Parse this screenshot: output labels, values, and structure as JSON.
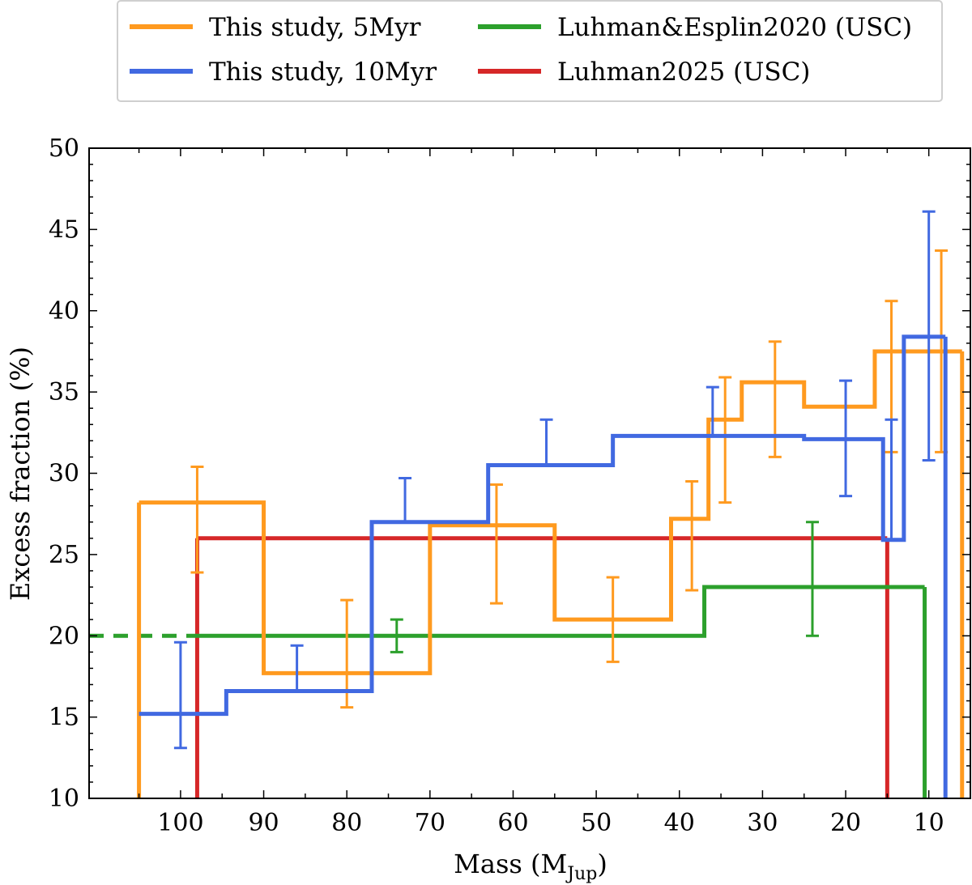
{
  "chart_data": {
    "type": "line",
    "style": "step",
    "title": "",
    "xlabel": "Mass (M",
    "xlabel_sub": "Jup",
    "xlabel_close": ")",
    "ylabel": "Excess fraction (%)",
    "xlim": [
      111,
      5
    ],
    "ylim": [
      10,
      50
    ],
    "x_inverted": true,
    "xticks": [
      100,
      90,
      80,
      70,
      60,
      50,
      40,
      30,
      20,
      10
    ],
    "yticks": [
      10,
      15,
      20,
      25,
      30,
      35,
      40,
      45,
      50
    ],
    "legend_position": "top, above plot",
    "series": [
      {
        "name": "This study, 5Myr",
        "color": "#ff9a1f",
        "steps": [
          [
            105,
            90,
            28.2
          ],
          [
            90,
            70,
            17.7
          ],
          [
            70,
            55,
            26.8
          ],
          [
            55,
            41,
            21.0
          ],
          [
            41,
            36.5,
            27.2
          ],
          [
            36.5,
            32.5,
            33.3
          ],
          [
            32.5,
            25,
            35.6
          ],
          [
            25,
            16.5,
            34.1
          ],
          [
            16.5,
            6,
            37.5
          ]
        ],
        "vlines": [
          [
            105,
            10,
            28.2
          ],
          [
            6,
            10,
            37.5
          ]
        ],
        "errorbars": [
          [
            98,
            28.2,
            23.9,
            30.4
          ],
          [
            80,
            17.7,
            15.6,
            22.2
          ],
          [
            62,
            26.8,
            22.0,
            29.3
          ],
          [
            48,
            21.0,
            18.4,
            23.6
          ],
          [
            38.5,
            27.2,
            22.8,
            29.5
          ],
          [
            34.5,
            33.3,
            28.2,
            35.9
          ],
          [
            28.5,
            35.6,
            31.0,
            38.1
          ],
          [
            14.5,
            37.5,
            31.3,
            40.6
          ],
          [
            8.5,
            37.5,
            31.3,
            43.7
          ]
        ]
      },
      {
        "name": "This study, 10Myr",
        "color": "#4169e1",
        "steps": [
          [
            105,
            94.5,
            15.2
          ],
          [
            94.5,
            77,
            16.6
          ],
          [
            77,
            63,
            27.0
          ],
          [
            63,
            48,
            30.5
          ],
          [
            48,
            25,
            32.3
          ],
          [
            25,
            15.5,
            32.1
          ],
          [
            15.5,
            13,
            25.9
          ],
          [
            13,
            8,
            38.4
          ]
        ],
        "vlines": [
          [
            8,
            10,
            38.4
          ]
        ],
        "errorbars": [
          [
            100,
            15.2,
            13.1,
            19.6
          ],
          [
            86,
            16.6,
            16.6,
            19.4
          ],
          [
            73,
            27.0,
            27.0,
            29.7
          ],
          [
            56,
            30.5,
            30.5,
            33.3
          ],
          [
            36,
            32.3,
            32.3,
            35.3
          ],
          [
            20,
            32.1,
            28.6,
            35.7
          ],
          [
            14.5,
            25.9,
            25.9,
            33.3
          ],
          [
            10,
            38.4,
            30.8,
            46.1
          ]
        ]
      },
      {
        "name": "Luhman&Esplin2020 (USC)",
        "color": "#2ca02c",
        "steps": [
          [
            98,
            37,
            20.0
          ],
          [
            37,
            10.5,
            23.0
          ]
        ],
        "vlines": [
          [
            10.5,
            10,
            23.0
          ]
        ],
        "extension": [
          [
            111,
            98,
            20.0
          ]
        ],
        "errorbars": [
          [
            74,
            20.0,
            19.0,
            21.0
          ],
          [
            24,
            23.0,
            20.0,
            27.0
          ]
        ]
      },
      {
        "name": "Luhman2025 (USC)",
        "color": "#d62728",
        "steps": [
          [
            98,
            15,
            26.0
          ]
        ],
        "vlines": [
          [
            98,
            10,
            26.0
          ],
          [
            15,
            10,
            26.0
          ]
        ],
        "errorbars": []
      }
    ]
  }
}
